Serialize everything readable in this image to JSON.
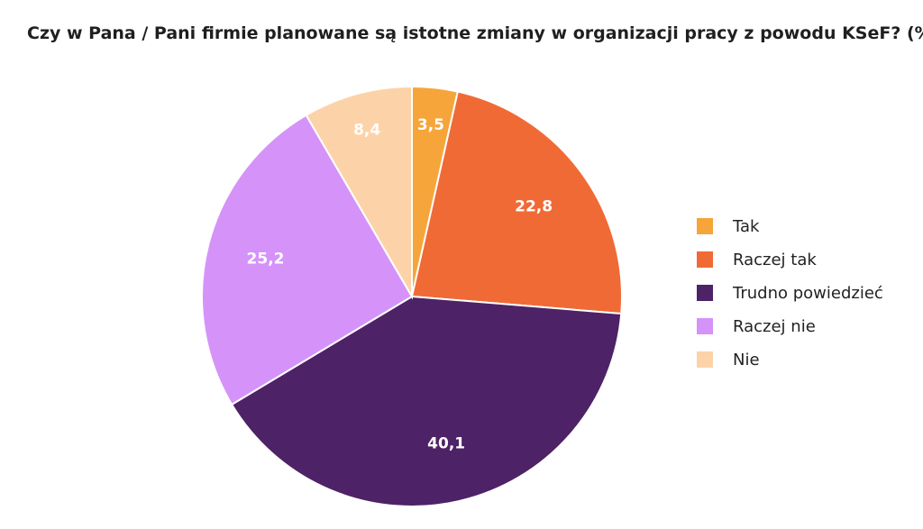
{
  "chart_data": {
    "type": "pie",
    "title": "Czy w Pana / Pani firmie planowane są istotne zmiany w organizacji pracy z powodu KSeF? (%)",
    "legend_position": "right",
    "categories": [
      "Tak",
      "Raczej tak",
      "Trudno powiedzieć",
      "Raczej nie",
      "Nie"
    ],
    "values": [
      3.5,
      22.8,
      40.1,
      25.2,
      8.4
    ],
    "value_labels": [
      "3,5",
      "22,8",
      "40,1",
      "25,2",
      "8,4"
    ],
    "colors": [
      "#F6A53A",
      "#F06A36",
      "#4E2266",
      "#D593F9",
      "#FCD3A8"
    ]
  }
}
